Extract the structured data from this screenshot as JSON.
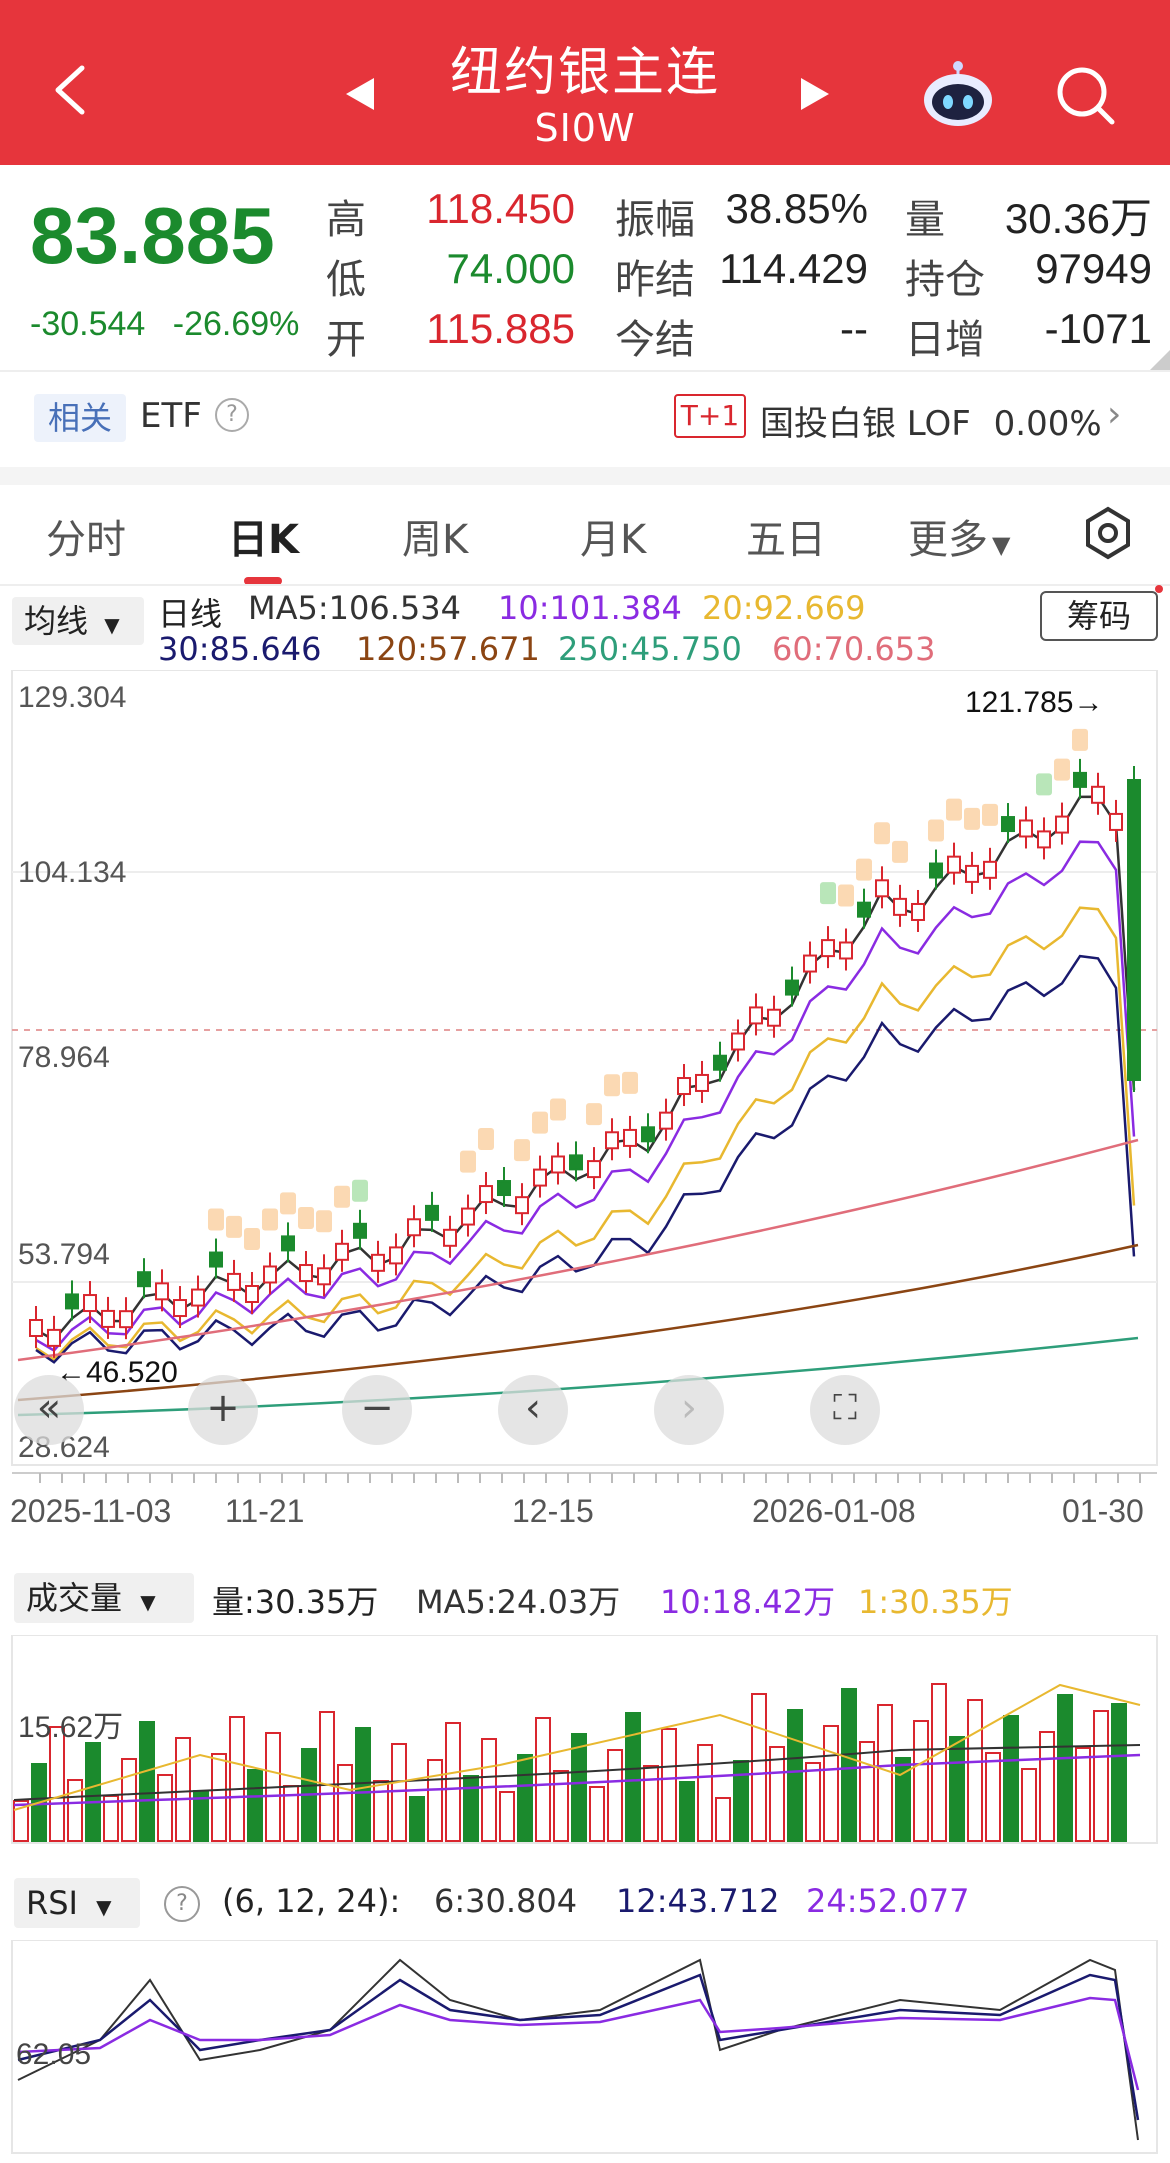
{
  "header": {
    "title": "纽约银主连",
    "subtitle": "SI0W"
  },
  "quote": {
    "price": "83.885",
    "change": "-30.544",
    "change_pct": "-26.69%",
    "high_label": "高",
    "high": "118.450",
    "low_label": "低",
    "low": "74.000",
    "open_label": "开",
    "open": "115.885",
    "amp_label": "振幅",
    "amp": "38.85%",
    "prev_settle_label": "昨结",
    "prev_settle": "114.429",
    "settle_label": "今结",
    "settle": "--",
    "vol_label": "量",
    "vol": "30.36万",
    "oi_label": "持仓",
    "oi": "97949",
    "daily_label": "日增",
    "daily": "-1071"
  },
  "related": {
    "tag": "相关",
    "etf": "ETF",
    "t1": "T+1",
    "fund": "国投白银 LOF",
    "fund_pct": "0.00%"
  },
  "tabs": [
    "分时",
    "日K",
    "周K",
    "月K",
    "五日",
    "更多"
  ],
  "ma": {
    "select": "均线",
    "kind": "日线",
    "ma5": "MA5:106.534",
    "ma10": "10:101.384",
    "ma20": "20:92.669",
    "ma30": "30:85.646",
    "ma120": "120:57.671",
    "ma250": "250:45.750",
    "ma60": "60:70.653",
    "chip_btn": "筹码"
  },
  "kline": {
    "y_labels": [
      "129.304",
      "104.134",
      "78.964",
      "53.794",
      "28.624"
    ],
    "x_labels": [
      "2025-11-03",
      "11-21",
      "12-15",
      "2026-01-08",
      "01-30"
    ],
    "max_label": "121.785→",
    "min_label": "←46.520",
    "colors": {
      "up": "#d9262e",
      "down": "#1b8a2d",
      "ma5": "#333333",
      "ma10": "#8a2be2",
      "ma20": "#e8b830",
      "ma30": "#1a1a6e",
      "ma60": "#e06d7a",
      "ma120": "#8b4513",
      "ma250": "#2e9e7a"
    }
  },
  "volume": {
    "select": "成交量",
    "vol": "量:30.35万",
    "ma5": "MA5:24.03万",
    "ma10": "10:18.42万",
    "ma1": "1:30.35万",
    "y_label": "15.62万"
  },
  "rsi": {
    "select": "RSI",
    "params": "(6, 12, 24):",
    "r6": "6:30.804",
    "r12": "12:43.712",
    "r24": "24:52.077",
    "y_label": "62.05"
  }
}
